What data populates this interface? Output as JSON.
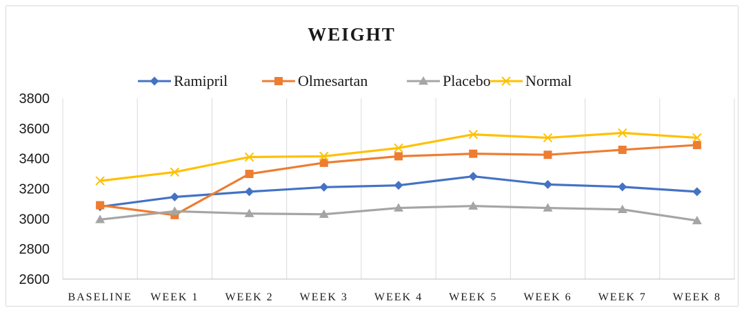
{
  "chart_data": {
    "type": "line",
    "title": "WEIGHT",
    "categories": [
      "BASELINE",
      "WEEK 1",
      "WEEK 2",
      "WEEK 3",
      "WEEK 4",
      "WEEK 5",
      "WEEK 6",
      "WEEK 7",
      "WEEK 8"
    ],
    "ylim": [
      2600,
      3800
    ],
    "yticks": [
      2600,
      2800,
      3000,
      3200,
      3400,
      3600,
      3800
    ],
    "grid": "vertical",
    "legend_position": "top",
    "series": [
      {
        "name": "Ramipril",
        "color": "#4472c4",
        "marker": "diamond",
        "values": [
          3080,
          3145,
          3180,
          3210,
          3222,
          3282,
          3228,
          3212,
          3180
        ]
      },
      {
        "name": "Olmesartan",
        "color": "#ed7d31",
        "marker": "square",
        "values": [
          3090,
          3025,
          3298,
          3372,
          3415,
          3432,
          3425,
          3458,
          3490
        ]
      },
      {
        "name": "Placebo",
        "color": "#a5a5a5",
        "marker": "triangle",
        "values": [
          2995,
          3050,
          3035,
          3030,
          3072,
          3085,
          3072,
          3062,
          2988
        ]
      },
      {
        "name": "Normal",
        "color": "#ffc000",
        "marker": "x",
        "values": [
          3252,
          3310,
          3410,
          3415,
          3470,
          3560,
          3538,
          3570,
          3538
        ]
      }
    ]
  }
}
